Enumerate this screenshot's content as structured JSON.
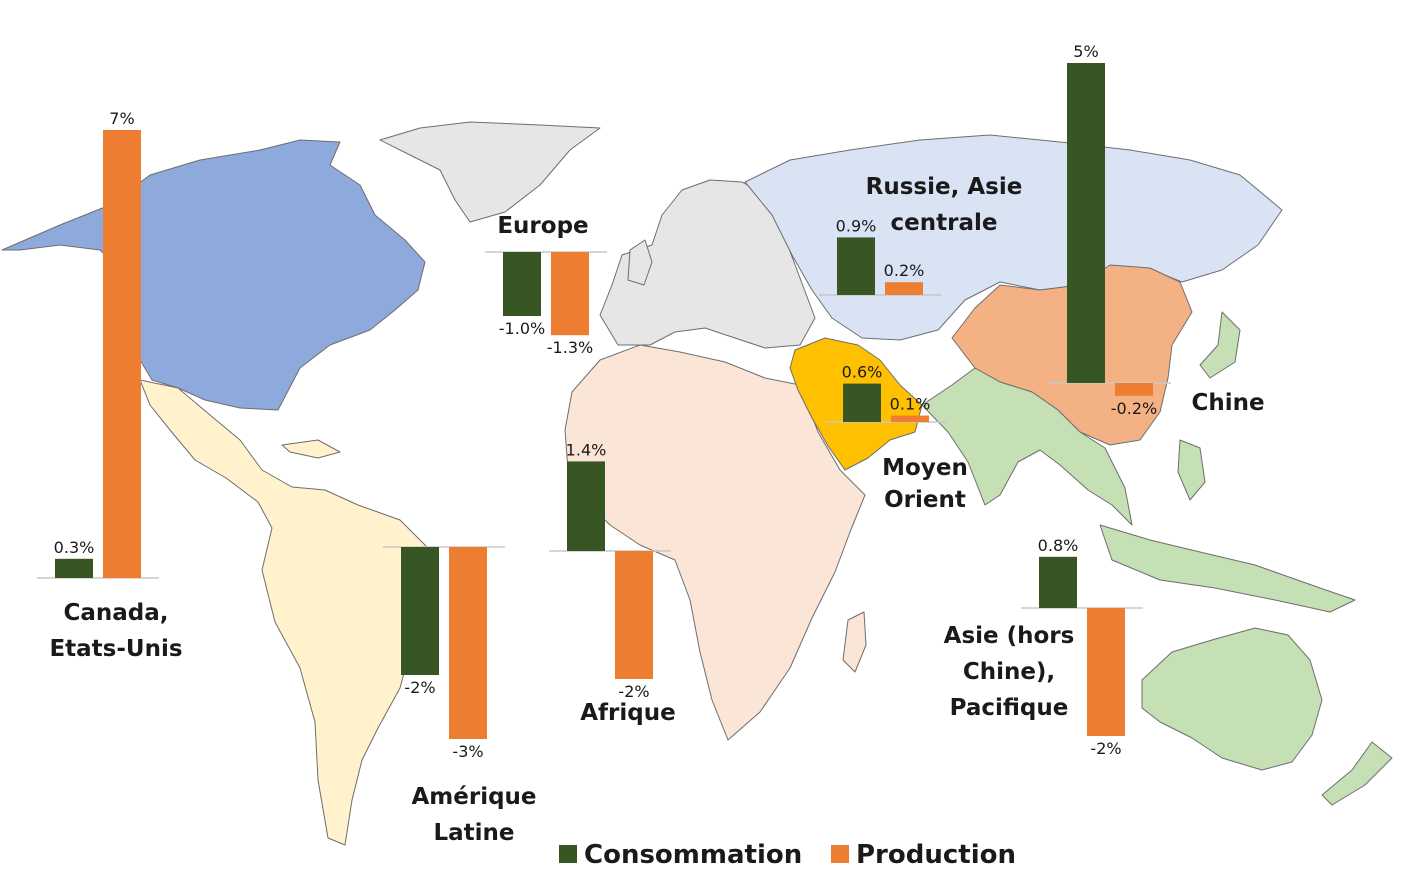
{
  "chart_data": {
    "type": "bar",
    "ylim_pct": [
      -3,
      7
    ],
    "series": [
      {
        "name": "Consommation",
        "color": "#375623"
      },
      {
        "name": "Production",
        "color": "#ED7D31"
      }
    ],
    "map_colors": {
      "north_america": "#8EA9DB",
      "latin_america": "#FFF2CC",
      "europe": "#E7E6E6",
      "africa": "#FBE5D6",
      "middle_east": "#FFC000",
      "russia": "#DAE3F3",
      "china": "#F4B183",
      "asia_pacific": "#C5E0B4"
    },
    "regions": [
      {
        "id": "canada-us",
        "name_lines": [
          "Canada,",
          "Etats-Unis"
        ],
        "consumption": 0.3,
        "production": 7,
        "consumption_label": "0.3%",
        "production_label": "7%"
      },
      {
        "id": "europe",
        "name_lines": [
          "Europe"
        ],
        "consumption": -1.0,
        "production": -1.3,
        "consumption_label": "-1.0%",
        "production_label": "-1.3%"
      },
      {
        "id": "latin-america",
        "name_lines": [
          "Amérique",
          "Latine"
        ],
        "consumption": -2,
        "production": -3,
        "consumption_label": "-2%",
        "production_label": "-3%"
      },
      {
        "id": "africa",
        "name_lines": [
          "Afrique"
        ],
        "consumption": 1.4,
        "production": -2,
        "consumption_label": "1.4%",
        "production_label": "-2%"
      },
      {
        "id": "middle-east",
        "name_lines": [
          "Moyen",
          "Orient"
        ],
        "consumption": 0.6,
        "production": 0.1,
        "consumption_label": "0.6%",
        "production_label": "0.1%"
      },
      {
        "id": "russia-central-asia",
        "name_lines": [
          "Russie, Asie",
          "centrale"
        ],
        "consumption": 0.9,
        "production": 0.2,
        "consumption_label": "0.9%",
        "production_label": "0.2%"
      },
      {
        "id": "china",
        "name_lines": [
          "Chine"
        ],
        "consumption": 5,
        "production": -0.2,
        "consumption_label": "5%",
        "production_label": "-0.2%"
      },
      {
        "id": "asia-pacific",
        "name_lines": [
          "Asie (hors",
          "Chine),",
          "Pacifique"
        ],
        "consumption": 0.8,
        "production": -2,
        "consumption_label": "0.8%",
        "production_label": "-2%"
      }
    ]
  }
}
